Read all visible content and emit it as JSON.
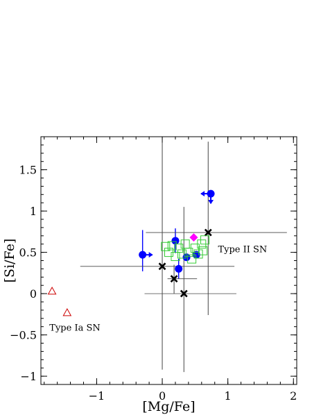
{
  "chart_data": {
    "type": "scatter",
    "xlabel": "[Mg/Fe]",
    "ylabel": "[Si/Fe]",
    "xlim": [
      -1.85,
      2.05
    ],
    "ylim": [
      -1.1,
      1.9
    ],
    "grid": false,
    "x_ticks": [
      {
        "value": -1,
        "label": "−1"
      },
      {
        "value": 0,
        "label": "0"
      },
      {
        "value": 1,
        "label": "1"
      },
      {
        "value": 2,
        "label": "2"
      }
    ],
    "y_ticks": [
      {
        "value": -1,
        "label": "−1"
      },
      {
        "value": -0.5,
        "label": "−0.5"
      },
      {
        "value": 0,
        "label": "0"
      },
      {
        "value": 0.5,
        "label": "0.5"
      },
      {
        "value": 1,
        "label": "1"
      },
      {
        "value": 1.5,
        "label": "1.5"
      }
    ],
    "annotations": [
      {
        "text": "Type II SN",
        "x": 0.85,
        "y": 0.5
      },
      {
        "text": "Type Ia SN",
        "x": -1.72,
        "y": -0.45
      }
    ],
    "series": [
      {
        "marker": "circle",
        "color": "#0000ff",
        "points": [
          {
            "x": -0.3,
            "y": 0.47,
            "xerr": null,
            "yerr": [
              0.2,
              0.3
            ],
            "xlimit": "right"
          },
          {
            "x": 0.2,
            "y": 0.64,
            "xerr": null,
            "yerr": [
              0.15,
              0.15
            ]
          },
          {
            "x": 0.25,
            "y": 0.3,
            "xerr": null,
            "yerr": [
              0.12,
              0.12
            ]
          },
          {
            "x": 0.37,
            "y": 0.44,
            "xerr": null,
            "yerr": null
          },
          {
            "x": 0.52,
            "y": 0.47,
            "xerr": null,
            "yerr": null
          },
          {
            "x": 0.74,
            "y": 1.21,
            "xerr": null,
            "yerr": null,
            "xlimit": "left",
            "ylimit": "down"
          }
        ]
      },
      {
        "marker": "x",
        "color": "#000000",
        "points": [
          {
            "x": 0.0,
            "y": 0.33,
            "xerr": [
              1.25,
              1.1
            ],
            "yerr": [
              1.25,
              1.5
            ]
          },
          {
            "x": 0.18,
            "y": 0.18,
            "xerr": [
              0.1,
              0.35
            ],
            "yerr": [
              0.18,
              0.17
            ]
          },
          {
            "x": 0.33,
            "y": 0.0,
            "xerr": [
              0.6,
              0.8
            ],
            "yerr": [
              0.95,
              1.05
            ]
          },
          {
            "x": 0.7,
            "y": 0.74,
            "xerr": [
              0.95,
              1.2
            ],
            "yerr": [
              1.0,
              1.1
            ]
          }
        ]
      },
      {
        "marker": "diamond",
        "color": "#ff00ff",
        "points": [
          {
            "x": 0.48,
            "y": 0.68
          }
        ]
      },
      {
        "marker": "square",
        "color": "#33cc33",
        "points": [
          {
            "x": 0.05,
            "y": 0.57
          },
          {
            "x": 0.1,
            "y": 0.5
          },
          {
            "x": 0.15,
            "y": 0.58
          },
          {
            "x": 0.2,
            "y": 0.45
          },
          {
            "x": 0.25,
            "y": 0.55
          },
          {
            "x": 0.3,
            "y": 0.48
          },
          {
            "x": 0.35,
            "y": 0.6
          },
          {
            "x": 0.4,
            "y": 0.5
          },
          {
            "x": 0.45,
            "y": 0.42
          },
          {
            "x": 0.5,
            "y": 0.55
          },
          {
            "x": 0.55,
            "y": 0.48
          },
          {
            "x": 0.6,
            "y": 0.6
          },
          {
            "x": 0.62,
            "y": 0.52
          },
          {
            "x": 0.65,
            "y": 0.65
          }
        ]
      },
      {
        "marker": "triangle",
        "color": "#cc0000",
        "points": [
          {
            "x": -1.68,
            "y": 0.03
          },
          {
            "x": -1.45,
            "y": -0.23
          }
        ]
      }
    ]
  }
}
